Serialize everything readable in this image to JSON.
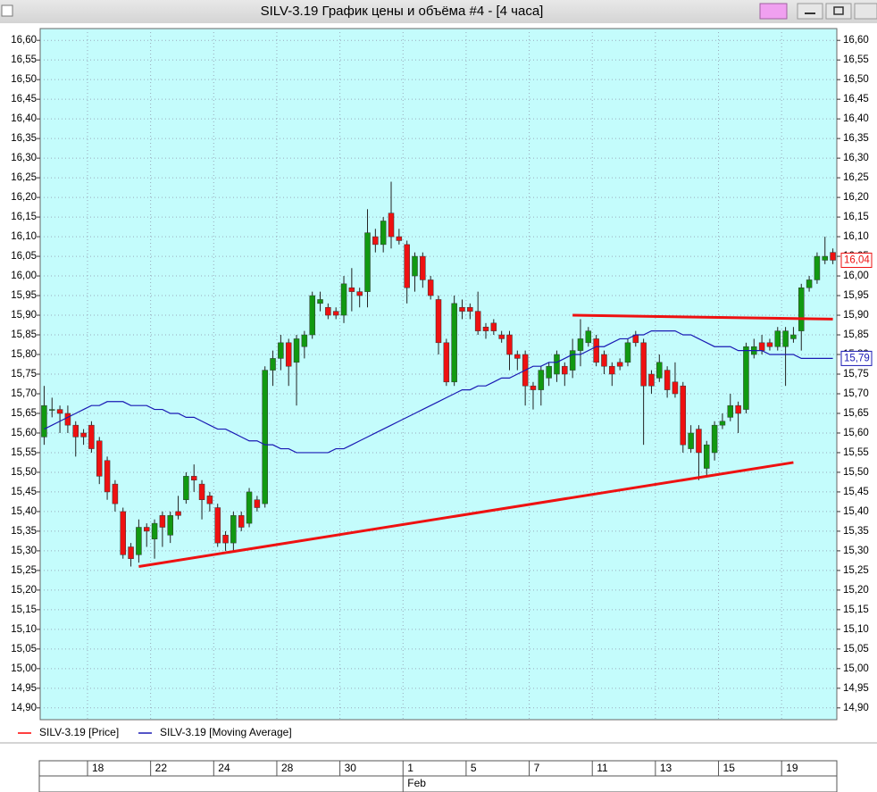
{
  "window_title": "SILV-3.19 График цены и объёма #4 - [4 часа]",
  "chart_data": {
    "type": "candlestick",
    "grid": true,
    "legend": "bottom-left",
    "ylim": [
      14.87,
      16.63
    ],
    "yticks": [
      {
        "value": 14.9,
        "label": "14,90"
      },
      {
        "value": 14.95,
        "label": "14,95"
      },
      {
        "value": 15.0,
        "label": "15,00"
      },
      {
        "value": 15.05,
        "label": "15,05"
      },
      {
        "value": 15.1,
        "label": "15,10"
      },
      {
        "value": 15.15,
        "label": "15,15"
      },
      {
        "value": 15.2,
        "label": "15,20"
      },
      {
        "value": 15.25,
        "label": "15,25"
      },
      {
        "value": 15.3,
        "label": "15,30"
      },
      {
        "value": 15.35,
        "label": "15,35"
      },
      {
        "value": 15.4,
        "label": "15,40"
      },
      {
        "value": 15.45,
        "label": "15,45"
      },
      {
        "value": 15.5,
        "label": "15,50"
      },
      {
        "value": 15.55,
        "label": "15,55"
      },
      {
        "value": 15.6,
        "label": "15,60"
      },
      {
        "value": 15.65,
        "label": "15,65"
      },
      {
        "value": 15.7,
        "label": "15,70"
      },
      {
        "value": 15.75,
        "label": "15,75"
      },
      {
        "value": 15.8,
        "label": "15,80"
      },
      {
        "value": 15.85,
        "label": "15,85"
      },
      {
        "value": 15.9,
        "label": "15,90"
      },
      {
        "value": 15.95,
        "label": "15,95"
      },
      {
        "value": 16.0,
        "label": "16,00"
      },
      {
        "value": 16.05,
        "label": "16,05"
      },
      {
        "value": 16.1,
        "label": "16,10"
      },
      {
        "value": 16.15,
        "label": "16,15"
      },
      {
        "value": 16.2,
        "label": "16,20"
      },
      {
        "value": 16.25,
        "label": "16,25"
      },
      {
        "value": 16.3,
        "label": "16,30"
      },
      {
        "value": 16.35,
        "label": "16,35"
      },
      {
        "value": 16.4,
        "label": "16,40"
      },
      {
        "value": 16.45,
        "label": "16,45"
      },
      {
        "value": 16.5,
        "label": "16,50"
      },
      {
        "value": 16.55,
        "label": "16,55"
      },
      {
        "value": 16.6,
        "label": "16,60"
      }
    ],
    "categories": [
      null,
      null,
      null,
      null,
      null,
      null,
      "18",
      null,
      null,
      null,
      null,
      null,
      null,
      null,
      "22",
      null,
      null,
      null,
      null,
      null,
      null,
      null,
      "24",
      null,
      null,
      null,
      null,
      null,
      null,
      null,
      "28",
      null,
      null,
      null,
      null,
      null,
      null,
      null,
      "30",
      null,
      null,
      null,
      null,
      null,
      null,
      null,
      "1",
      null,
      null,
      null,
      null,
      null,
      null,
      null,
      "5",
      null,
      null,
      null,
      null,
      null,
      null,
      null,
      "7",
      null,
      null,
      null,
      null,
      null,
      null,
      null,
      "11",
      null,
      null,
      null,
      null,
      null,
      null,
      null,
      "13",
      null,
      null,
      null,
      null,
      null,
      null,
      null,
      "15",
      null,
      null,
      null,
      null,
      null,
      null,
      null,
      "19",
      null,
      null,
      null,
      null,
      null,
      null
    ],
    "month_categories": [
      null,
      null,
      null,
      null,
      null,
      null,
      null,
      null,
      null,
      null,
      null,
      null,
      null,
      null,
      null,
      null,
      null,
      null,
      null,
      null,
      null,
      null,
      null,
      null,
      null,
      null,
      null,
      null,
      null,
      null,
      null,
      null,
      null,
      null,
      null,
      null,
      null,
      null,
      null,
      null,
      null,
      null,
      null,
      null,
      null,
      null,
      "Feb",
      null,
      null,
      null,
      null,
      null,
      null,
      null,
      null,
      null,
      null,
      null,
      null,
      null,
      null,
      null,
      null,
      null,
      null,
      null,
      null,
      null,
      null,
      null,
      null,
      null,
      null,
      null,
      null,
      null,
      null,
      null,
      null,
      null,
      null,
      null,
      null,
      null,
      null,
      null,
      null,
      null,
      null,
      null,
      null,
      null,
      null,
      null,
      null,
      null,
      null,
      null,
      null,
      null,
      null
    ],
    "series": [
      {
        "name": "SILV-3.19 [Price]",
        "color": "#ff0000",
        "up_color": "#119911",
        "down_color": "#ee1111",
        "open": [
          15.59,
          15.66,
          15.66,
          15.65,
          15.62,
          15.6,
          15.62,
          15.58,
          15.53,
          15.47,
          15.4,
          15.31,
          15.29,
          15.36,
          15.33,
          15.39,
          15.34,
          15.4,
          15.43,
          15.49,
          15.47,
          15.44,
          15.41,
          15.34,
          15.32,
          15.39,
          15.37,
          15.43,
          15.42,
          15.76,
          15.79,
          15.83,
          15.78,
          15.82,
          15.85,
          15.93,
          15.92,
          15.91,
          15.9,
          15.97,
          15.96,
          15.96,
          16.1,
          16.08,
          16.16,
          16.1,
          16.08,
          16.0,
          16.05,
          15.99,
          15.94,
          15.83,
          15.73,
          15.92,
          15.92,
          15.91,
          15.87,
          15.88,
          15.85,
          15.85,
          15.8,
          15.8,
          15.72,
          15.71,
          15.74,
          15.75,
          15.77,
          15.76,
          15.81,
          15.83,
          15.84,
          15.8,
          15.77,
          15.78,
          15.78,
          15.85,
          15.83,
          15.75,
          15.74,
          15.76,
          15.73,
          15.72,
          15.56,
          15.61,
          15.51,
          15.55,
          15.62,
          15.64,
          15.67,
          15.66,
          15.8,
          15.83,
          15.83,
          15.82,
          15.82,
          15.84,
          15.86,
          15.97,
          15.99,
          16.04,
          16.06
        ],
        "high": [
          15.72,
          15.69,
          15.67,
          15.67,
          15.63,
          15.61,
          15.63,
          15.59,
          15.54,
          15.48,
          15.41,
          15.32,
          15.38,
          15.37,
          15.38,
          15.4,
          15.4,
          15.44,
          15.5,
          15.52,
          15.48,
          15.45,
          15.42,
          15.35,
          15.4,
          15.4,
          15.46,
          15.44,
          15.77,
          15.81,
          15.85,
          15.84,
          15.85,
          15.86,
          15.96,
          15.96,
          15.93,
          15.92,
          16.0,
          16.02,
          15.97,
          16.17,
          16.12,
          16.15,
          16.24,
          16.12,
          16.09,
          16.06,
          16.06,
          16.0,
          15.95,
          15.84,
          15.95,
          15.94,
          15.93,
          15.96,
          15.88,
          15.89,
          15.86,
          15.86,
          15.81,
          15.81,
          15.73,
          15.77,
          15.78,
          15.81,
          15.78,
          15.84,
          15.89,
          15.87,
          15.85,
          15.81,
          15.78,
          15.79,
          15.84,
          15.86,
          15.84,
          15.76,
          15.8,
          15.77,
          15.78,
          15.73,
          15.62,
          15.62,
          15.58,
          15.63,
          15.65,
          15.7,
          15.68,
          15.83,
          15.84,
          15.85,
          15.84,
          15.87,
          15.87,
          15.87,
          15.98,
          16.0,
          16.06,
          16.1,
          16.07
        ],
        "low": [
          15.57,
          15.64,
          15.6,
          15.6,
          15.54,
          15.57,
          15.55,
          15.47,
          15.43,
          15.4,
          15.28,
          15.26,
          15.27,
          15.31,
          15.28,
          15.31,
          15.32,
          15.38,
          15.42,
          15.45,
          15.38,
          15.4,
          15.31,
          15.3,
          15.3,
          15.35,
          15.36,
          15.4,
          15.41,
          15.72,
          15.76,
          15.72,
          15.67,
          15.79,
          15.84,
          15.91,
          15.89,
          15.89,
          15.88,
          15.91,
          15.92,
          15.92,
          16.06,
          16.06,
          16.07,
          16.08,
          15.93,
          15.96,
          15.97,
          15.94,
          15.8,
          15.72,
          15.72,
          15.89,
          15.89,
          15.85,
          15.84,
          15.85,
          15.83,
          15.76,
          15.76,
          15.67,
          15.66,
          15.67,
          15.72,
          15.73,
          15.72,
          15.74,
          15.77,
          15.82,
          15.77,
          15.75,
          15.72,
          15.76,
          15.77,
          15.82,
          15.57,
          15.7,
          15.73,
          15.69,
          15.69,
          15.55,
          15.55,
          15.48,
          15.49,
          15.53,
          15.61,
          15.63,
          15.6,
          15.65,
          15.79,
          15.8,
          15.81,
          15.81,
          15.72,
          15.83,
          15.81,
          15.96,
          15.98,
          16.03,
          16.03
        ],
        "close": [
          15.67,
          15.66,
          15.65,
          15.62,
          15.59,
          15.59,
          15.56,
          15.49,
          15.45,
          15.42,
          15.29,
          15.28,
          15.36,
          15.35,
          15.37,
          15.36,
          15.39,
          15.39,
          15.49,
          15.48,
          15.43,
          15.42,
          15.32,
          15.32,
          15.39,
          15.36,
          15.45,
          15.41,
          15.76,
          15.79,
          15.83,
          15.77,
          15.84,
          15.85,
          15.95,
          15.94,
          15.9,
          15.9,
          15.98,
          15.96,
          15.95,
          16.11,
          16.08,
          16.14,
          16.1,
          16.09,
          15.97,
          16.05,
          15.99,
          15.95,
          15.83,
          15.73,
          15.93,
          15.91,
          15.91,
          15.86,
          15.86,
          15.86,
          15.84,
          15.8,
          15.79,
          15.72,
          15.71,
          15.76,
          15.77,
          15.8,
          15.75,
          15.81,
          15.84,
          15.86,
          15.78,
          15.77,
          15.75,
          15.77,
          15.83,
          15.83,
          15.72,
          15.72,
          15.78,
          15.71,
          15.7,
          15.57,
          15.6,
          15.55,
          15.57,
          15.62,
          15.63,
          15.67,
          15.65,
          15.82,
          15.82,
          15.81,
          15.82,
          15.86,
          15.86,
          15.85,
          15.97,
          15.99,
          16.05,
          16.05,
          16.04
        ]
      },
      {
        "name": "SILV-3.19 [Moving Average]",
        "type": "line",
        "color": "#1a1ab4",
        "values": [
          15.61,
          15.62,
          15.63,
          15.64,
          15.65,
          15.66,
          15.67,
          15.67,
          15.68,
          15.68,
          15.68,
          15.67,
          15.67,
          15.67,
          15.66,
          15.66,
          15.65,
          15.65,
          15.64,
          15.64,
          15.63,
          15.62,
          15.61,
          15.61,
          15.6,
          15.59,
          15.58,
          15.58,
          15.57,
          15.57,
          15.56,
          15.56,
          15.55,
          15.55,
          15.55,
          15.55,
          15.55,
          15.56,
          15.56,
          15.57,
          15.58,
          15.59,
          15.6,
          15.61,
          15.62,
          15.63,
          15.64,
          15.65,
          15.66,
          15.67,
          15.68,
          15.69,
          15.7,
          15.71,
          15.71,
          15.72,
          15.72,
          15.73,
          15.74,
          15.74,
          15.75,
          15.76,
          15.77,
          15.77,
          15.78,
          15.78,
          15.79,
          15.8,
          15.8,
          15.81,
          15.82,
          15.82,
          15.83,
          15.84,
          15.84,
          15.85,
          15.85,
          15.86,
          15.86,
          15.86,
          15.86,
          15.85,
          15.85,
          15.84,
          15.83,
          15.82,
          15.82,
          15.82,
          15.81,
          15.81,
          15.81,
          15.81,
          15.8,
          15.8,
          15.8,
          15.8,
          15.79,
          15.79,
          15.79,
          15.79,
          15.79
        ]
      }
    ],
    "trend_lines": [
      {
        "x": [
          12,
          95
        ],
        "y": [
          15.26,
          15.525
        ],
        "color": "#ee1111"
      },
      {
        "x": [
          67,
          100
        ],
        "y": [
          15.9,
          15.89
        ],
        "color": "#ee1111"
      }
    ],
    "last_labels": [
      {
        "value": 16.04,
        "label": "16,04",
        "color": "#ee1111"
      },
      {
        "value": 15.79,
        "label": "15,79",
        "color": "#1a1ab4"
      }
    ]
  }
}
